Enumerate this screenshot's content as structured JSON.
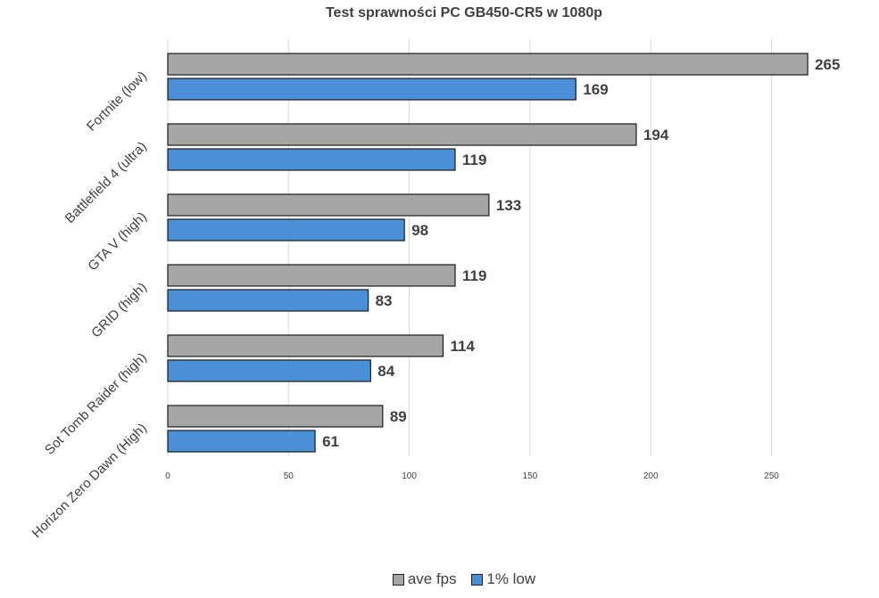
{
  "chart_data": {
    "type": "bar",
    "orientation": "horizontal",
    "title": "Test sprawności PC GB450-CR5 w 1080p",
    "categories": [
      "Fortnite (low)",
      "Battlefield 4 (ultra)",
      "GTA V (high)",
      "GRID (high)",
      "Sot Tomb Raider (high)",
      "Horizon Zero Dawn (High)"
    ],
    "series": [
      {
        "name": "ave fps",
        "color": "#a6a6a6",
        "values": [
          265,
          194,
          133,
          119,
          114,
          89
        ]
      },
      {
        "name": "1% low",
        "color": "#4a90d9",
        "values": [
          169,
          119,
          98,
          83,
          84,
          61
        ]
      }
    ],
    "xlim": [
      0,
      280
    ],
    "xticks": [
      0,
      50,
      100,
      150,
      200,
      250
    ],
    "grid": true,
    "legend_position": "bottom"
  }
}
